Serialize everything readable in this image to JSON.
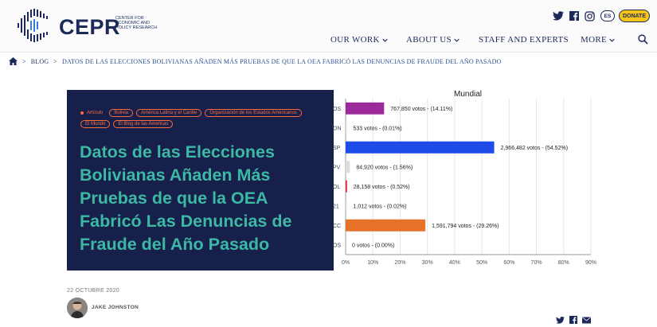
{
  "header": {
    "logo_text": "CEPR",
    "logo_subtitle": "Center for Economic and Policy Research",
    "lang_label": "ES",
    "donate_label": "DONATE",
    "nav": [
      {
        "label": "OUR WORK"
      },
      {
        "label": "ABOUT US"
      },
      {
        "label": "STAFF AND EXPERTS"
      },
      {
        "label": "MORE"
      }
    ],
    "icons": [
      "twitter-icon",
      "facebook-icon",
      "instagram-icon",
      "search-icon"
    ]
  },
  "breadcrumb": {
    "sep": ">",
    "blog": "BLOG",
    "current": "DATOS DE LAS ELECCIONES BOLIVIANAS AÑADEN MÁS PRUEBAS DE QUE LA OEA FABRICÓ LAS DENUNCIAS DE FRAUDE DEL AÑO PASADO"
  },
  "article": {
    "type": "Artículo",
    "tags": [
      "Bolivia",
      "América Latina y el Caribe",
      "Organización de los Estados Americanos",
      "El Mundo",
      "El Blog de las Americas"
    ],
    "title": "Datos de las Elecciones Bolivianas Añaden Más Pruebas de que la OEA Fabricó Las Denuncias de Fraude del Año Pasado",
    "date": "22 OCTUBRE 2020",
    "author": "JAKE JOHNSTON"
  },
  "colors": {
    "navy": "#1c2a5a",
    "hero_bg": "#16204a",
    "hero_title": "#3cb8a4",
    "tag_orange": "#ff6a3d",
    "donate_yellow": "#f5c518"
  },
  "chart_data": {
    "type": "bar",
    "orientation": "horizontal",
    "title": "Mundial",
    "categories": [
      "OS",
      "ON",
      "SP",
      "PV",
      "OL",
      "21",
      "CC",
      "OS"
    ],
    "values": [
      14.11,
      0.01,
      54.52,
      1.56,
      0.52,
      0.02,
      29.26,
      0.0
    ],
    "labels": [
      "767,850 votos - (14.11%)",
      "533 votos - (0.01%)",
      "2,966,482 votos - (54.52%)",
      "84,920 votos - (1.56%)",
      "28,158 votos - (0.52%)",
      "1,012 votos - (0.02%)",
      "1,591,794 votos - (29.26%)",
      "0 votos - (0.00%)"
    ],
    "colors": [
      "#9b2a98",
      "#dddddd",
      "#1f4be8",
      "#dddddd",
      "#e8253a",
      "#dddddd",
      "#e8712a",
      "#dddddd"
    ],
    "xlim": [
      0,
      90
    ],
    "xticks": [
      "0%",
      "10%",
      "20%",
      "30%",
      "40%",
      "50%",
      "60%",
      "70%",
      "80%",
      "90%"
    ],
    "grid": true
  }
}
